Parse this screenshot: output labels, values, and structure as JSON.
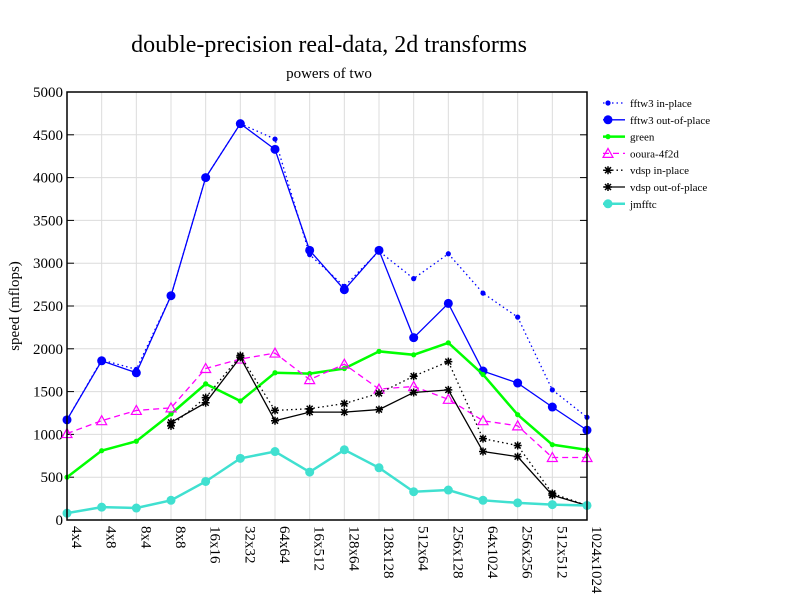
{
  "chart_data": {
    "type": "line",
    "title": "double-precision real-data, 2d transforms",
    "subtitle": "powers of two",
    "xlabel": "",
    "ylabel": "speed (mflops)",
    "ylim": [
      0,
      5000
    ],
    "yticks": [
      0,
      500,
      1000,
      1500,
      2000,
      2500,
      3000,
      3500,
      4000,
      4500,
      5000
    ],
    "grid": true,
    "legend_position": "right",
    "categories": [
      "4x4",
      "4x8",
      "8x4",
      "8x8",
      "16x16",
      "32x32",
      "64x64",
      "16x512",
      "128x64",
      "128x128",
      "512x64",
      "256x128",
      "64x1024",
      "256x256",
      "512x512",
      "1024x1024"
    ],
    "series": [
      {
        "name": "fftw3 in-place",
        "color": "#0000ff",
        "style": "dotted",
        "marker": "small-dot",
        "values": [
          1170,
          1870,
          1760,
          2620,
          4000,
          4630,
          4450,
          3100,
          2730,
          3140,
          2820,
          3110,
          2650,
          2370,
          1520,
          1200
        ]
      },
      {
        "name": "fftw3 out-of-place",
        "color": "#0000ff",
        "style": "solid",
        "marker": "dot",
        "values": [
          1170,
          1860,
          1720,
          2620,
          4000,
          4630,
          4330,
          3150,
          2690,
          3150,
          2130,
          2530,
          1740,
          1600,
          1320,
          1050
        ]
      },
      {
        "name": "green",
        "color": "#00ff00",
        "style": "solid-thick",
        "marker": "small-dot",
        "values": [
          500,
          810,
          920,
          1240,
          1590,
          1390,
          1720,
          1710,
          1770,
          1970,
          1930,
          2070,
          1700,
          1230,
          880,
          820
        ]
      },
      {
        "name": "ooura-4f2d",
        "color": "#ff00ff",
        "style": "dashed",
        "marker": "triangle",
        "values": [
          1010,
          1160,
          1280,
          1310,
          1770,
          1880,
          1950,
          1640,
          1820,
          1530,
          1560,
          1410,
          1160,
          1100,
          730,
          730
        ]
      },
      {
        "name": "vdsp in-place",
        "color": "#000000",
        "style": "dotted",
        "marker": "star",
        "values": [
          null,
          null,
          null,
          1100,
          1430,
          1920,
          1280,
          1300,
          1360,
          1480,
          1680,
          1850,
          950,
          870,
          310,
          170
        ]
      },
      {
        "name": "vdsp out-of-place",
        "color": "#000000",
        "style": "solid",
        "marker": "star",
        "values": [
          null,
          null,
          null,
          1140,
          1370,
          1900,
          1160,
          1260,
          1260,
          1290,
          1490,
          1520,
          800,
          740,
          290,
          170
        ]
      },
      {
        "name": "jmfftc",
        "color": "#40e0d0",
        "style": "solid-thick",
        "marker": "dot",
        "values": [
          80,
          150,
          140,
          230,
          450,
          720,
          800,
          560,
          820,
          610,
          330,
          350,
          230,
          200,
          180,
          170
        ]
      }
    ]
  }
}
